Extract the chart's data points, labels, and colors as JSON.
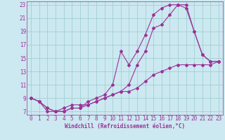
{
  "xlabel": "Windchill (Refroidissement éolien,°C)",
  "bg_color": "#cce8f0",
  "line_color": "#993399",
  "grid_color": "#99cccc",
  "xlim": [
    -0.5,
    23.5
  ],
  "ylim": [
    6.5,
    23.5
  ],
  "yticks": [
    7,
    9,
    11,
    13,
    15,
    17,
    19,
    21,
    23
  ],
  "xticks": [
    0,
    1,
    2,
    3,
    4,
    5,
    6,
    7,
    8,
    9,
    10,
    11,
    12,
    13,
    14,
    15,
    16,
    17,
    18,
    19,
    20,
    21,
    22,
    23
  ],
  "line1_x": [
    0,
    1,
    2,
    3,
    4,
    5,
    6,
    7,
    8,
    9,
    10,
    11,
    12,
    13,
    14,
    15,
    16,
    17,
    18,
    19,
    20,
    21,
    22,
    23
  ],
  "line1_y": [
    9,
    8.5,
    7.5,
    7,
    7,
    7.5,
    7.5,
    8,
    8.5,
    9,
    9.5,
    10,
    11,
    14,
    16,
    19.5,
    20,
    21.5,
    23,
    23,
    19,
    15.5,
    14.5,
    14.5
  ],
  "line2_x": [
    0,
    1,
    2,
    3,
    4,
    5,
    6,
    7,
    8,
    9,
    10,
    11,
    12,
    13,
    14,
    15,
    16,
    17,
    18,
    19,
    20,
    21,
    22,
    23
  ],
  "line2_y": [
    9,
    8.5,
    7,
    7,
    7,
    7.5,
    7.5,
    8.5,
    9,
    9.5,
    11,
    16,
    14,
    16,
    18.5,
    21.5,
    22.5,
    23,
    23,
    22.5,
    19,
    15.5,
    14.5,
    14.5
  ],
  "line3_x": [
    0,
    1,
    2,
    3,
    4,
    5,
    6,
    7,
    8,
    9,
    10,
    11,
    12,
    13,
    14,
    15,
    16,
    17,
    18,
    19,
    20,
    21,
    22,
    23
  ],
  "line3_y": [
    9,
    8.5,
    7.5,
    7,
    7.5,
    8,
    8,
    8,
    8.5,
    9,
    9.5,
    10,
    10,
    10.5,
    11.5,
    12.5,
    13,
    13.5,
    14,
    14,
    14,
    14,
    14,
    14.5
  ],
  "tick_fontsize": 5.5,
  "xlabel_fontsize": 5.5,
  "marker_size": 2.0,
  "line_width": 0.8
}
